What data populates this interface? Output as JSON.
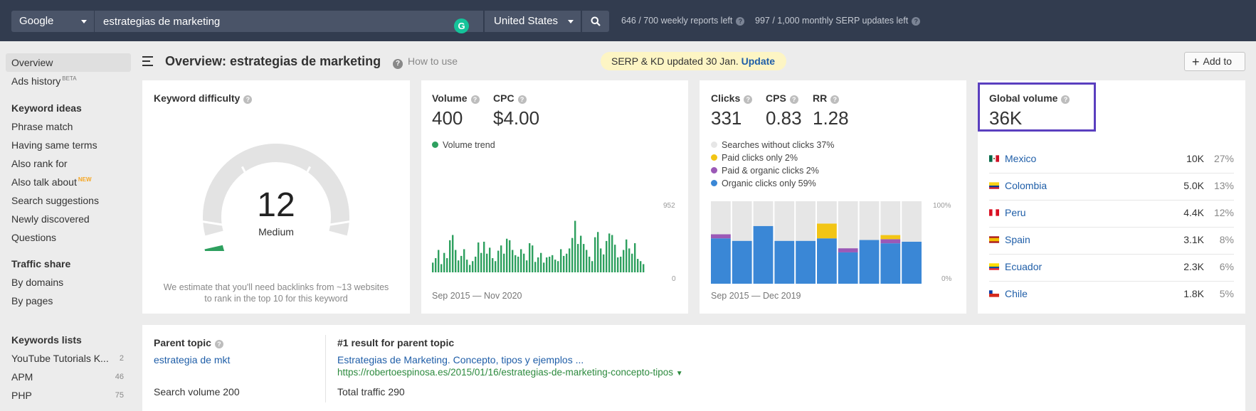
{
  "topbar": {
    "engine": "Google",
    "query": "estrategias de marketing",
    "country": "United States",
    "weekly_quota": "646 / 700 weekly reports left",
    "monthly_quota": "997 / 1,000 monthly SERP updates left"
  },
  "sidebar": {
    "overview": "Overview",
    "ads_history": "Ads history",
    "beta_badge": "BETA",
    "keyword_ideas_heading": "Keyword ideas",
    "keyword_ideas": [
      "Phrase match",
      "Having same terms",
      "Also rank for",
      "Also talk about",
      "Search suggestions",
      "Newly discovered",
      "Questions"
    ],
    "new_badge": "NEW",
    "traffic_share_heading": "Traffic share",
    "traffic_share": [
      "By domains",
      "By pages"
    ],
    "keywords_lists_heading": "Keywords lists",
    "keyword_lists": [
      {
        "name": "YouTube Tutorials K...",
        "count": "2"
      },
      {
        "name": "APM",
        "count": "46"
      },
      {
        "name": "PHP",
        "count": "75"
      }
    ]
  },
  "header": {
    "title": "Overview: estrategias de marketing",
    "how_to_use": "How to use",
    "banner_text": "SERP & KD updated 30 Jan.",
    "banner_link": "Update",
    "add_to": "Add to"
  },
  "kd_card": {
    "title": "Keyword difficulty",
    "score": "12",
    "score_value": 12,
    "label": "Medium",
    "note_line1": "We estimate that you'll need backlinks from ~13 websites",
    "note_line2": "to rank in the top 10 for this keyword"
  },
  "volume_card": {
    "volume_label": "Volume",
    "volume_value": "400",
    "cpc_label": "CPC",
    "cpc_value": "$4.00",
    "trend_label": "Volume trend",
    "y_max": "952",
    "y_min": "0",
    "date_range": "Sep 2015 — Nov 2020",
    "trend_color": "#2ea05f"
  },
  "clicks_card": {
    "clicks_label": "Clicks",
    "clicks_value": "331",
    "cps_label": "CPS",
    "cps_value": "0.83",
    "rr_label": "RR",
    "rr_value": "1.28",
    "legend": [
      {
        "label": "Searches without clicks 37%",
        "color": "#e6e6e6"
      },
      {
        "label": "Paid clicks only 2%",
        "color": "#f2c515"
      },
      {
        "label": "Paid & organic clicks 2%",
        "color": "#9b59b6"
      },
      {
        "label": "Organic clicks only 59%",
        "color": "#3a87d6"
      }
    ],
    "y_max": "100%",
    "y_min": "0%",
    "date_range": "Sep 2015 — Dec 2019"
  },
  "global_card": {
    "title": "Global volume",
    "value": "36K",
    "countries": [
      {
        "name": "Mexico",
        "volume": "10K",
        "pct": "27%",
        "flag": "mx"
      },
      {
        "name": "Colombia",
        "volume": "5.0K",
        "pct": "13%",
        "flag": "co"
      },
      {
        "name": "Peru",
        "volume": "4.4K",
        "pct": "12%",
        "flag": "pe"
      },
      {
        "name": "Spain",
        "volume": "3.1K",
        "pct": "8%",
        "flag": "es"
      },
      {
        "name": "Ecuador",
        "volume": "2.3K",
        "pct": "6%",
        "flag": "ec"
      },
      {
        "name": "Chile",
        "volume": "1.8K",
        "pct": "5%",
        "flag": "cl"
      }
    ]
  },
  "parent_topic": {
    "title": "Parent topic",
    "topic": "estrategia de mkt",
    "search_volume": "Search volume 200",
    "result_title": "#1 result for parent topic",
    "result_link": "Estrategias de Marketing. Concepto, tipos y ejemplos ...",
    "result_url": "https://robertoespinosa.es/2015/01/16/estrategias-de-marketing-concepto-tipos",
    "total_traffic": "Total traffic 290"
  },
  "chart_data": [
    {
      "type": "bar",
      "title": "Volume trend",
      "x_range": [
        "Sep 2015",
        "Nov 2020"
      ],
      "ylim": [
        0,
        952
      ],
      "values": [
        130,
        190,
        300,
        110,
        260,
        190,
        430,
        500,
        300,
        160,
        220,
        310,
        170,
        100,
        150,
        210,
        400,
        260,
        410,
        250,
        330,
        190,
        150,
        290,
        360,
        250,
        450,
        430,
        300,
        230,
        210,
        310,
        250,
        160,
        390,
        360,
        140,
        200,
        260,
        130,
        200,
        210,
        230,
        170,
        150,
        310,
        220,
        250,
        320,
        460,
        690,
        380,
        490,
        380,
        300,
        210,
        150,
        470,
        540,
        320,
        240,
        420,
        520,
        500,
        370,
        200,
        210,
        300,
        440,
        320,
        250,
        390,
        180,
        150,
        110
      ]
    },
    {
      "type": "bar",
      "title": "Click distribution",
      "stacked": true,
      "ylim": [
        0,
        100
      ],
      "x_range": [
        "Sep 2015",
        "Dec 2019"
      ],
      "series": [
        {
          "name": "Organic clicks only",
          "color": "#3a87d6",
          "values": [
            55,
            52,
            70,
            52,
            52,
            55,
            38,
            53,
            49,
            51
          ]
        },
        {
          "name": "Paid & organic clicks",
          "color": "#9b59b6",
          "values": [
            5,
            0,
            0,
            0,
            0,
            0,
            5,
            0,
            5,
            0
          ]
        },
        {
          "name": "Paid clicks only",
          "color": "#f2c515",
          "values": [
            0,
            0,
            0,
            0,
            0,
            18,
            0,
            0,
            5,
            0
          ]
        },
        {
          "name": "Searches without clicks",
          "color": "#e6e6e6",
          "values": [
            40,
            48,
            30,
            48,
            48,
            27,
            57,
            47,
            41,
            49
          ]
        }
      ]
    }
  ]
}
